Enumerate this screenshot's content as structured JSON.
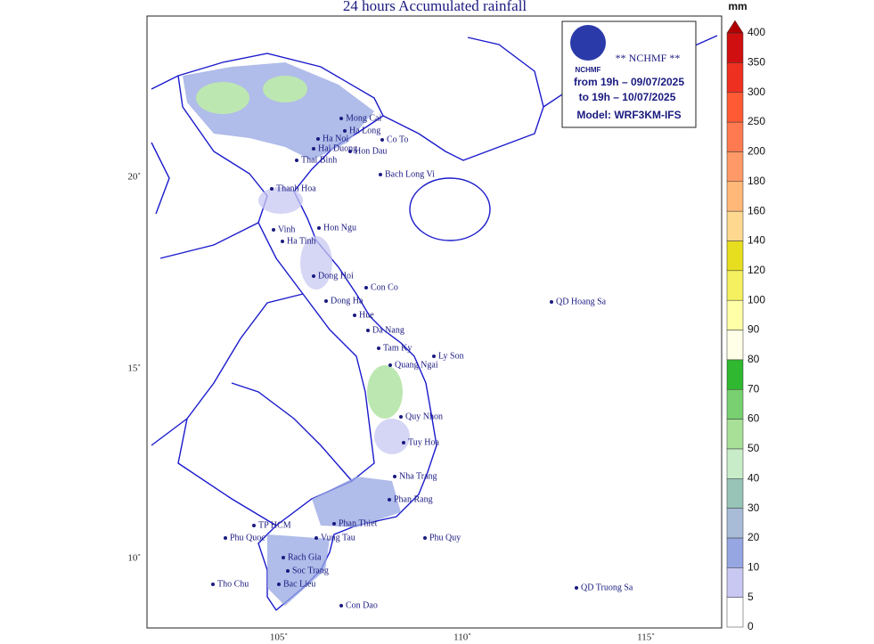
{
  "title": "24 hours Accumulated rainfall",
  "info_box": {
    "agency": "** NCHMF **",
    "logo_text": "NCHMF",
    "from": "from 19h – 09/07/2025",
    "to": "to 19h – 10/07/2025",
    "model": "Model: WRF3KM-IFS"
  },
  "axes": {
    "lat_labels": [
      "20˚",
      "15˚",
      "10˚"
    ],
    "lon_labels": [
      "105˚",
      "110˚",
      "115˚"
    ]
  },
  "colorbar": {
    "unit": "mm",
    "levels": [
      0,
      5,
      10,
      20,
      30,
      40,
      50,
      60,
      70,
      80,
      90,
      100,
      120,
      140,
      160,
      180,
      200,
      250,
      300,
      350,
      400
    ],
    "colors": [
      "#ffffff",
      "#c8c8f2",
      "#96a6e2",
      "#a8bcd8",
      "#98c4b8",
      "#c8ecc8",
      "#a8e098",
      "#78d070",
      "#30b830",
      "#ffffe8",
      "#ffffa8",
      "#f4f060",
      "#e8de20",
      "#ffd890",
      "#ffb878",
      "#ff9a68",
      "#ff7a50",
      "#ff5a34",
      "#ee3020",
      "#d01010"
    ]
  },
  "places": [
    "Mong Cai",
    "Ha Long",
    "Co To",
    "Ha Noi",
    "Hai Duong",
    "Hon Dau",
    "Thai Binh",
    "Bach Long Vi",
    "Thanh Hoa",
    "Hon Ngu",
    "Vinh",
    "Ha Tinh",
    "Dong Hoi",
    "Con Co",
    "Dong Ha",
    "Hue",
    "Da Nang",
    "Tam Ky",
    "Ly Son",
    "Quang Ngai",
    "QD Hoang Sa",
    "Quy Nhon",
    "Tuy Hoa",
    "Nha Trang",
    "Phan Rang",
    "Phan Thiet",
    "TP HCM",
    "Phu Quoc",
    "Vung Tau",
    "Phu Quy",
    "Rach Gia",
    "Soc Trang",
    "Bac Lieu",
    "Tho Chu",
    "Con Dao",
    "QD Truong Sa"
  ]
}
